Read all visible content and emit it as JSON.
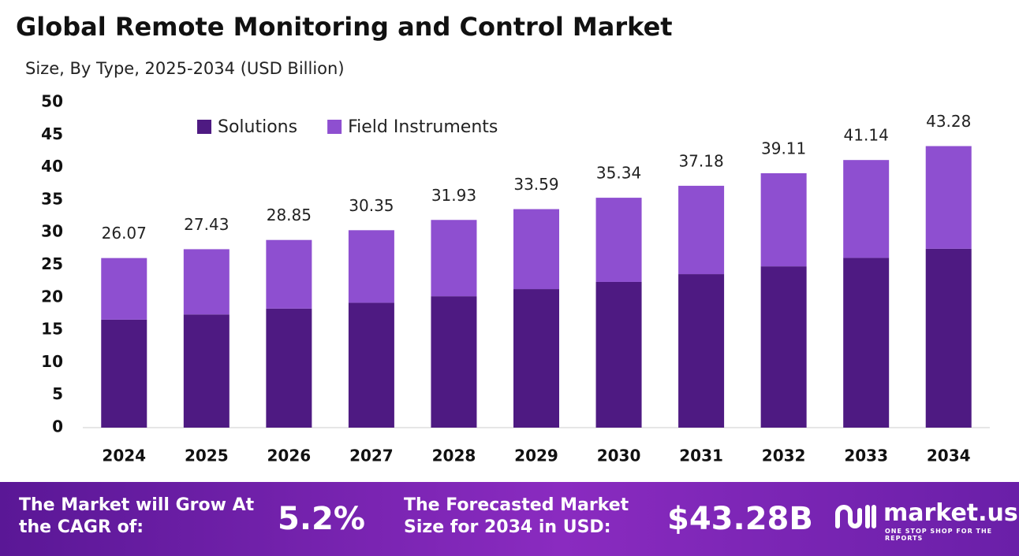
{
  "chart_data": {
    "type": "stacked-bar",
    "title": "Global Remote Monitoring and Control Market",
    "subtitle": "Size, By Type, 2025-2034 (USD Billion)",
    "categories": [
      "2024",
      "2025",
      "2026",
      "2027",
      "2028",
      "2029",
      "2030",
      "2031",
      "2032",
      "2033",
      "2034"
    ],
    "series": [
      {
        "name": "Solutions",
        "color": "#4e1a82",
        "values": [
          16.6,
          17.4,
          18.3,
          19.2,
          20.2,
          21.3,
          22.4,
          23.6,
          24.8,
          26.1,
          27.5
        ]
      },
      {
        "name": "Field Instruments",
        "color": "#8e4fd0",
        "values": [
          9.47,
          10.03,
          10.55,
          11.15,
          11.73,
          12.29,
          12.94,
          13.58,
          14.31,
          15.04,
          15.78
        ]
      }
    ],
    "totals": [
      26.07,
      27.43,
      28.85,
      30.35,
      31.93,
      33.59,
      35.34,
      37.18,
      39.11,
      41.14,
      43.28
    ],
    "ylim": [
      0,
      50
    ],
    "yticks": [
      0,
      5,
      10,
      15,
      20,
      25,
      30,
      35,
      40,
      45,
      50
    ],
    "grid": false,
    "legend": "top"
  },
  "footer": {
    "cagr_text": "The Market will Grow At the CAGR of:",
    "cagr_value": "5.2%",
    "forecast_text": "The Forecasted Market Size for 2034 in USD:",
    "forecast_value": "$43.28B",
    "brand": "market.us",
    "tagline": "ONE STOP SHOP FOR THE REPORTS"
  }
}
